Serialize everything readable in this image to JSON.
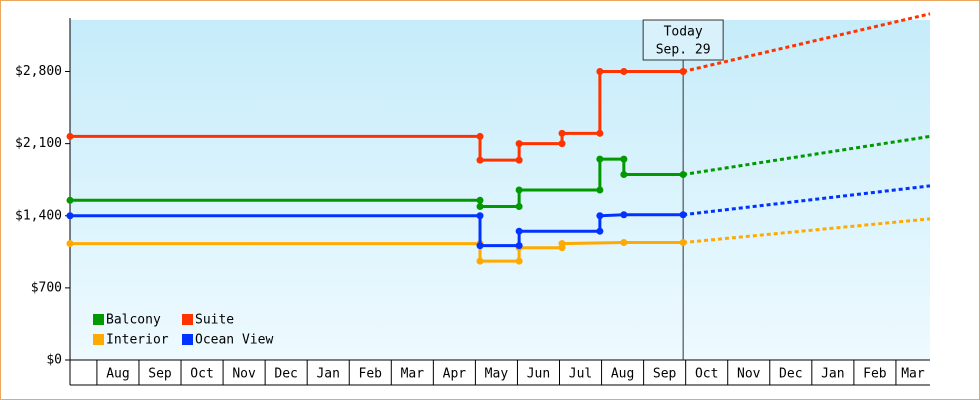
{
  "chart_data": {
    "type": "step-line",
    "categories": [
      "Aug",
      "Sep",
      "Oct",
      "Nov",
      "Dec",
      "Jan",
      "Feb",
      "Mar",
      "Apr",
      "May",
      "Jun",
      "Jul",
      "Aug",
      "Sep",
      "Oct",
      "Nov",
      "Dec",
      "Jan",
      "Feb",
      "Mar"
    ],
    "xlim": [
      -0.64,
      19.81
    ],
    "ylim": [
      0,
      3300
    ],
    "yticks": [
      {
        "value": 0,
        "label": "$0"
      },
      {
        "value": 700,
        "label": "$700"
      },
      {
        "value": 1400,
        "label": "$1,400"
      },
      {
        "value": 2100,
        "label": "$2,100"
      },
      {
        "value": 2800,
        "label": "$2,800"
      }
    ],
    "today": {
      "x": 13.94,
      "label": "Today",
      "date": "Sep. 29"
    },
    "forecast_x": [
      13.94,
      19.81
    ],
    "legend": "lower left",
    "series": [
      {
        "name": "Balcony",
        "color": "#009900",
        "x": [
          -0.64,
          9.11,
          9.11,
          10.04,
          10.04,
          11.96,
          11.96,
          12.53,
          12.53,
          13.94
        ],
        "values": [
          1550,
          1550,
          1490,
          1490,
          1650,
          1650,
          1950,
          1950,
          1800,
          1800
        ],
        "forecast": [
          1800,
          2170
        ]
      },
      {
        "name": "Suite",
        "color": "#ff3300",
        "x": [
          -0.64,
          9.11,
          9.11,
          10.04,
          10.04,
          11.06,
          11.06,
          11.96,
          11.96,
          12.53,
          13.94
        ],
        "values": [
          2170,
          2170,
          1940,
          1940,
          2100,
          2100,
          2200,
          2200,
          2800,
          2800,
          2800
        ],
        "forecast": [
          2800,
          3360
        ]
      },
      {
        "name": "Interior",
        "color": "#ffaa00",
        "x": [
          -0.64,
          9.11,
          9.11,
          10.04,
          10.04,
          11.06,
          11.06,
          12.53,
          13.94
        ],
        "values": [
          1130,
          1130,
          960,
          960,
          1090,
          1090,
          1130,
          1140,
          1140
        ],
        "forecast": [
          1140,
          1370
        ]
      },
      {
        "name": "Ocean View",
        "color": "#0033ff",
        "x": [
          -0.64,
          9.11,
          9.11,
          10.04,
          10.04,
          11.96,
          11.96,
          12.53,
          13.94
        ],
        "values": [
          1400,
          1400,
          1110,
          1110,
          1250,
          1250,
          1400,
          1410,
          1410
        ],
        "forecast": [
          1410,
          1690
        ]
      }
    ]
  }
}
